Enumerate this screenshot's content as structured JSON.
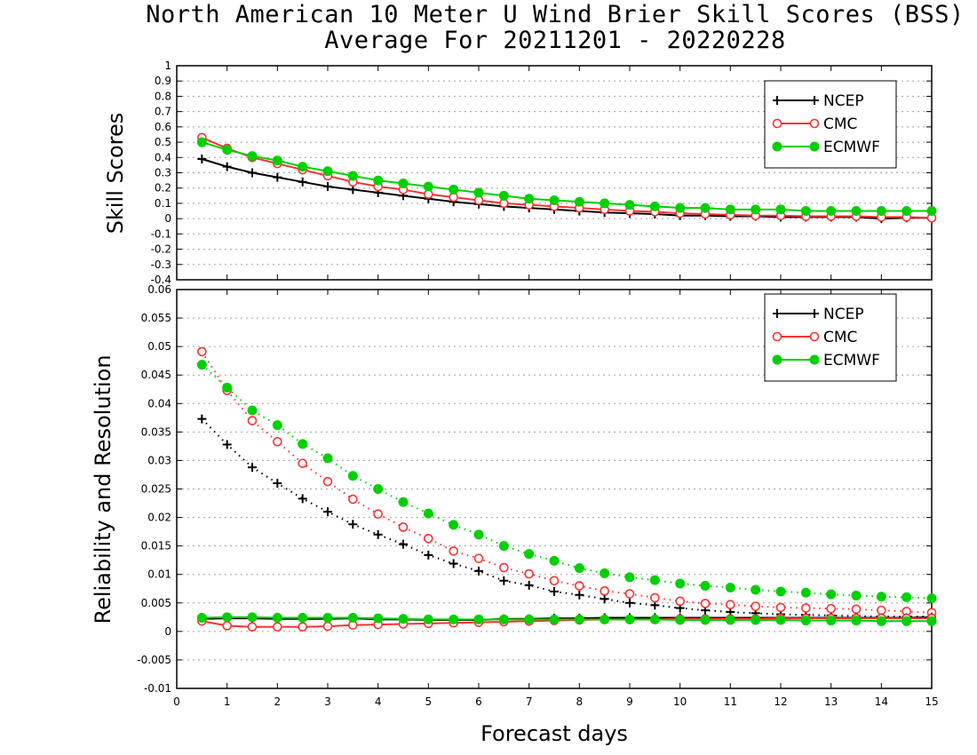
{
  "title_line1": "North American 10 Meter U Wind Brier Skill Scores (BSS)",
  "title_line2": "Average For 20211201 - 20220228",
  "xlabel": "Forecast days",
  "colors": {
    "NCEP": "#000000",
    "CMC": "#ff3030",
    "ECMWF": "#00d000",
    "grid": "#a0a0a0"
  },
  "chart_data": [
    {
      "type": "line",
      "panel": "top",
      "ylabel": "Skill Scores",
      "xlim": [
        0,
        15
      ],
      "ylim": [
        -0.4,
        1
      ],
      "xticks": [
        "0",
        "1",
        "2",
        "3",
        "4",
        "5",
        "6",
        "7",
        "8",
        "9",
        "10",
        "11",
        "12",
        "13",
        "14",
        "15"
      ],
      "yticks": [
        "-0.4",
        "-0.3",
        "-0.2",
        "-0.1",
        "0",
        "0.1",
        "0.2",
        "0.3",
        "0.4",
        "0.5",
        "0.6",
        "0.7",
        "0.8",
        "0.9",
        "1"
      ],
      "grid": true,
      "legend_position": "top-right",
      "x": [
        0.5,
        1,
        1.5,
        2,
        2.5,
        3,
        3.5,
        4,
        4.5,
        5,
        5.5,
        6,
        6.5,
        7,
        7.5,
        8,
        8.5,
        9,
        9.5,
        10,
        10.5,
        11,
        11.5,
        12,
        12.5,
        13,
        13.5,
        14,
        14.5,
        15
      ],
      "series": [
        {
          "name": "NCEP",
          "marker": "plus",
          "line": "solid",
          "values": [
            0.39,
            0.34,
            0.3,
            0.27,
            0.24,
            0.21,
            0.19,
            0.17,
            0.15,
            0.13,
            0.11,
            0.095,
            0.08,
            0.07,
            0.06,
            0.05,
            0.04,
            0.035,
            0.03,
            0.02,
            0.02,
            0.015,
            0.015,
            0.01,
            0.01,
            0.01,
            0.01,
            0.0,
            0.005,
            0.005
          ]
        },
        {
          "name": "CMC",
          "marker": "open-circle",
          "line": "solid",
          "values": [
            0.53,
            0.46,
            0.4,
            0.36,
            0.32,
            0.28,
            0.24,
            0.21,
            0.19,
            0.16,
            0.14,
            0.12,
            0.1,
            0.09,
            0.08,
            0.07,
            0.06,
            0.05,
            0.045,
            0.035,
            0.03,
            0.025,
            0.02,
            0.02,
            0.015,
            0.015,
            0.015,
            0.01,
            0.01,
            0.005
          ]
        },
        {
          "name": "ECMWF",
          "marker": "filled-circle",
          "line": "solid",
          "values": [
            0.5,
            0.45,
            0.41,
            0.38,
            0.34,
            0.31,
            0.28,
            0.25,
            0.23,
            0.21,
            0.19,
            0.17,
            0.15,
            0.13,
            0.12,
            0.11,
            0.1,
            0.09,
            0.08,
            0.07,
            0.07,
            0.06,
            0.06,
            0.06,
            0.05,
            0.05,
            0.05,
            0.05,
            0.05,
            0.05
          ]
        }
      ]
    },
    {
      "type": "line",
      "panel": "bottom",
      "ylabel": "Reliability and Resolution",
      "xlim": [
        0,
        15
      ],
      "ylim": [
        -0.01,
        0.06
      ],
      "xticks": [
        "0",
        "1",
        "2",
        "3",
        "4",
        "5",
        "6",
        "7",
        "8",
        "9",
        "10",
        "11",
        "12",
        "13",
        "14",
        "15"
      ],
      "yticks": [
        "-0.01",
        "-0.005",
        "0",
        "0.005",
        "0.01",
        "0.015",
        "0.02",
        "0.025",
        "0.03",
        "0.035",
        "0.04",
        "0.045",
        "0.05",
        "0.055",
        "0.06"
      ],
      "grid": true,
      "legend_position": "top-right",
      "x": [
        0.5,
        1,
        1.5,
        2,
        2.5,
        3,
        3.5,
        4,
        4.5,
        5,
        5.5,
        6,
        6.5,
        7,
        7.5,
        8,
        8.5,
        9,
        9.5,
        10,
        10.5,
        11,
        11.5,
        12,
        12.5,
        13,
        13.5,
        14,
        14.5,
        15
      ],
      "series": [
        {
          "name": "NCEP",
          "marker": "plus",
          "line": "dotted",
          "role": "resolution",
          "values": [
            0.0373,
            0.0328,
            0.0288,
            0.026,
            0.0233,
            0.021,
            0.0188,
            0.017,
            0.0153,
            0.0134,
            0.0119,
            0.0106,
            0.0089,
            0.0081,
            0.007,
            0.0064,
            0.0057,
            0.005,
            0.0046,
            0.0041,
            0.0037,
            0.0034,
            0.0032,
            0.003,
            0.0029,
            0.0028,
            0.0027,
            0.0026,
            0.0026,
            0.0026
          ]
        },
        {
          "name": "CMC",
          "marker": "open-circle",
          "line": "dotted",
          "role": "resolution",
          "values": [
            0.0491,
            0.0423,
            0.037,
            0.0333,
            0.0295,
            0.0263,
            0.0232,
            0.0206,
            0.0183,
            0.0163,
            0.0141,
            0.0128,
            0.0112,
            0.0101,
            0.0089,
            0.008,
            0.0071,
            0.0066,
            0.0059,
            0.0053,
            0.0049,
            0.0047,
            0.0044,
            0.0042,
            0.0041,
            0.004,
            0.0039,
            0.0037,
            0.0035,
            0.0033
          ]
        },
        {
          "name": "ECMWF",
          "marker": "filled-circle",
          "line": "dotted",
          "role": "resolution",
          "values": [
            0.0468,
            0.0428,
            0.0388,
            0.0362,
            0.0329,
            0.0304,
            0.0273,
            0.025,
            0.0227,
            0.0207,
            0.0187,
            0.017,
            0.015,
            0.0136,
            0.0124,
            0.0111,
            0.0102,
            0.0095,
            0.009,
            0.0084,
            0.008,
            0.0077,
            0.0073,
            0.007,
            0.0068,
            0.0065,
            0.0063,
            0.0061,
            0.006,
            0.0058
          ]
        },
        {
          "name": "NCEP",
          "marker": "plus",
          "line": "solid",
          "role": "reliability",
          "values": [
            0.0022,
            0.0023,
            0.0023,
            0.0022,
            0.0022,
            0.0022,
            0.0023,
            0.0021,
            0.0021,
            0.002,
            0.002,
            0.002,
            0.0022,
            0.0022,
            0.0023,
            0.0023,
            0.0024,
            0.0024,
            0.0024,
            0.0024,
            0.0024,
            0.0024,
            0.0024,
            0.0024,
            0.0024,
            0.0024,
            0.0024,
            0.0024,
            0.0024,
            0.0025
          ]
        },
        {
          "name": "CMC",
          "marker": "open-circle",
          "line": "solid",
          "role": "reliability",
          "values": [
            0.0018,
            0.001,
            0.0008,
            0.0008,
            0.0008,
            0.0009,
            0.0011,
            0.0012,
            0.0013,
            0.0014,
            0.0015,
            0.0016,
            0.0017,
            0.0018,
            0.0019,
            0.002,
            0.0021,
            0.0021,
            0.0021,
            0.0022,
            0.0022,
            0.0022,
            0.0022,
            0.0023,
            0.0023,
            0.0023,
            0.0023,
            0.0023,
            0.0023,
            0.0023
          ]
        },
        {
          "name": "ECMWF",
          "marker": "filled-circle",
          "line": "solid",
          "role": "reliability",
          "values": [
            0.0024,
            0.0025,
            0.0025,
            0.0024,
            0.0024,
            0.0024,
            0.0024,
            0.0023,
            0.0022,
            0.0021,
            0.0021,
            0.0021,
            0.0021,
            0.0021,
            0.0021,
            0.0021,
            0.0021,
            0.0021,
            0.0021,
            0.002,
            0.002,
            0.002,
            0.002,
            0.002,
            0.0019,
            0.0019,
            0.0019,
            0.0018,
            0.0018,
            0.0018
          ]
        }
      ]
    }
  ]
}
